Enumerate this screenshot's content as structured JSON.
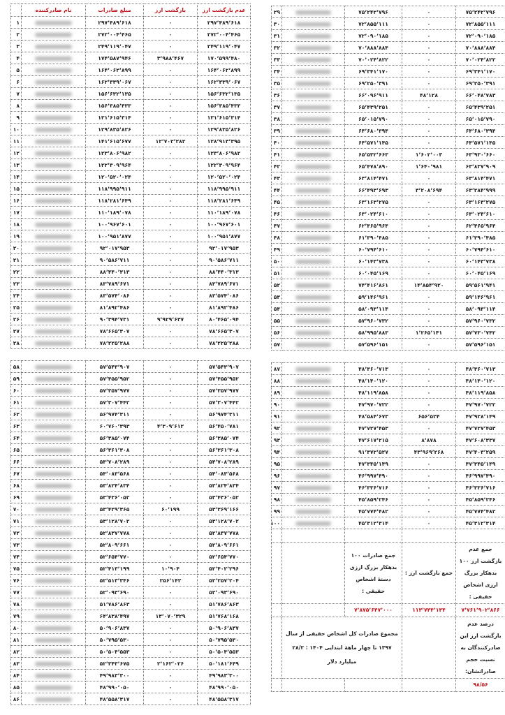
{
  "headers": {
    "name": "نام صادرکننده",
    "amount": "مبلغ صادرات",
    "returned": "بازگشت ارز",
    "not_returned": "عدم بازگشت ارز"
  },
  "colors": {
    "header_text": "#c0141b",
    "total_values": "#c0141b",
    "border": "#777777"
  },
  "names_blurred": true,
  "tables": {
    "top_left": [
      [
        "۱",
        "۲۹۷٬۴۸۹٬۶۱۸",
        "۰",
        "۲۹۷٬۴۸۹٬۶۱۸"
      ],
      [
        "۲",
        "۲۷۲٬۰۰۴٬۴۶۵",
        "۰",
        "۲۷۲٬۰۰۴٬۴۶۵"
      ],
      [
        "۳",
        "۲۴۹٬۱۱۹٬۰۴۷",
        "۰",
        "۲۴۹٬۱۱۹٬۰۴۷"
      ],
      [
        "۴",
        "۱۷۴٬۵۸۷٬۹۴۶",
        "۳٬۹۸۸٬۴۶۷",
        "۱۷۰٬۵۹۹٬۴۸۰"
      ],
      [
        "۵",
        "۱۶۴٬۰۶۲٬۸۹۹",
        "۰",
        "۱۶۴٬۰۶۲٬۸۹۹"
      ],
      [
        "۶",
        "۱۶۲٬۳۳۹٬۰۶۷",
        "۰",
        "۱۶۲٬۳۳۹٬۰۶۷"
      ],
      [
        "۷",
        "۱۵۶٬۶۳۲٬۱۳۵",
        "۰",
        "۱۵۶٬۶۳۲٬۱۳۵"
      ],
      [
        "۸",
        "۱۵۶٬۳۸۵٬۴۳۳",
        "۰",
        "۱۵۶٬۳۸۵٬۴۳۳"
      ],
      [
        "۹",
        "۱۳۱٬۶۱۵٬۳۱۴",
        "۰",
        "۱۳۱٬۶۱۵٬۳۱۴"
      ],
      [
        "۱۰",
        "۱۲۹٬۸۳۵٬۸۲۶",
        "۰",
        "۱۲۹٬۸۳۵٬۸۲۶"
      ],
      [
        "۱۱",
        "۱۴۱٬۶۱۵٬۶۷۷",
        "۱۲٬۷۰۲٬۲۸۲",
        "۱۲۸٬۹۱۳٬۳۹۵"
      ],
      [
        "۱۲",
        "۱۲۳٬۸۰۶٬۹۸۲",
        "۰",
        "۱۲۳٬۸۰۶٬۹۸۲"
      ],
      [
        "۱۳",
        "۱۲۲٬۳۰۹٬۹۶۴",
        "۰",
        "۱۲۲٬۳۰۹٬۹۶۴"
      ],
      [
        "۱۴",
        "۱۲۰٬۵۲۰٬۰۲۴",
        "۰",
        "۱۲۰٬۵۲۰٬۰۲۴"
      ],
      [
        "۱۵",
        "۱۱۸٬۹۹۵٬۹۱۱",
        "۰",
        "۱۱۸٬۹۹۵٬۹۱۱"
      ],
      [
        "۱۶",
        "۱۱۸٬۲۸۱٬۶۴۹",
        "۰",
        "۱۱۸٬۲۸۱٬۶۴۹"
      ],
      [
        "۱۷",
        "۱۱۰٬۱۸۹٬۰۷۸",
        "۰",
        "۱۱۰٬۱۸۹٬۰۷۸"
      ],
      [
        "۱۸",
        "۱۰۰٬۹۶۷٬۶۰۱",
        "۰",
        "۱۰۰٬۹۶۷٬۶۰۱"
      ],
      [
        "۱۹",
        "۱۰۰٬۹۵۱٬۸۷۷",
        "۰",
        "۱۰۰٬۹۵۱٬۸۷۷"
      ],
      [
        "۲۰",
        "۹۲٬۰۱۷٬۹۵۳",
        "۰",
        "۹۲٬۰۱۷٬۹۵۳"
      ],
      [
        "۲۱",
        "۹۰٬۵۸۶٬۷۱۱",
        "۰",
        "۹۰٬۵۸۶٬۷۱۱"
      ],
      [
        "۲۲",
        "۸۸٬۴۴۰٬۳۱۳",
        "۰",
        "۸۸٬۴۴۰٬۳۱۳"
      ],
      [
        "۲۳",
        "۸۳٬۷۸۹٬۶۷۱",
        "۰",
        "۸۳٬۷۸۹٬۶۷۱"
      ],
      [
        "۲۴",
        "۸۳٬۵۷۴٬۰۸۶",
        "۰",
        "۸۳٬۵۷۴٬۰۸۶"
      ],
      [
        "۲۵",
        "۸۱٬۸۹۲٬۴۸۶",
        "۰",
        "۸۱٬۸۹۲٬۴۸۶"
      ],
      [
        "۲۶",
        "۹۰٬۳۹۴٬۷۳۱",
        "۹٬۹۲۹٬۶۳۷",
        "۸۰٬۴۶۵٬۰۹۴"
      ],
      [
        "۲۷",
        "۷۸٬۶۶۵٬۳۰۷",
        "۰",
        "۷۸٬۶۶۵٬۳۰۷"
      ],
      [
        "۲۸",
        "۷۸٬۲۲۵٬۲۸۸",
        "۰",
        "۷۸٬۲۲۵٬۲۸۸"
      ]
    ],
    "top_right": [
      [
        "۲۹",
        "۷۵٬۲۴۲٬۷۹۶",
        "۰",
        "۷۵٬۲۴۲٬۷۹۶"
      ],
      [
        "۳۰",
        "۷۲٬۸۵۵٬۱۱۱",
        "۰",
        "۷۲٬۸۵۵٬۱۱۱"
      ],
      [
        "۳۱",
        "۷۲٬۰۹۰٬۱۸۵",
        "۰",
        "۷۲٬۰۹۰٬۱۸۵"
      ],
      [
        "۳۲",
        "۷۰٬۸۸۸٬۸۸۴",
        "۰",
        "۷۰٬۸۸۸٬۸۸۴"
      ],
      [
        "۳۳",
        "۷۰٬۰۲۴٬۸۲۲",
        "۰",
        "۷۰٬۰۲۴٬۸۲۲"
      ],
      [
        "۳۴",
        "۶۹٬۳۴۱٬۱۷۰",
        "۰",
        "۶۹٬۳۴۱٬۱۷۰"
      ],
      [
        "۳۵",
        "۶۹٬۲۵۰٬۳۹۱",
        "۰",
        "۶۹٬۲۵۰٬۳۹۱"
      ],
      [
        "۳۶",
        "۶۶٬۰۹۶٬۹۱۱",
        "۴۸٬۱۲۸",
        "۶۶٬۰۴۸٬۷۸۳"
      ],
      [
        "۳۷",
        "۶۵٬۴۳۹٬۲۵۱",
        "۰",
        "۶۵٬۴۳۹٬۲۵۱"
      ],
      [
        "۳۸",
        "۶۵٬۰۱۵٬۷۹۰",
        "۰",
        "۶۵٬۰۱۵٬۷۹۰"
      ],
      [
        "۳۹",
        "۶۴٬۶۸۰٬۳۹۴",
        "۰",
        "۶۴٬۶۸۰٬۳۹۴"
      ],
      [
        "۴۰",
        "۶۴٬۵۷۱٬۱۴۵",
        "۰",
        "۶۴٬۵۷۱٬۱۴۵"
      ],
      [
        "۴۱",
        "۶۵٬۵۳۲٬۶۶۳",
        "۱٬۶۰۲٬۰۰۳",
        "۶۳٬۹۳۰٬۶۶۰"
      ],
      [
        "۴۲",
        "۶۵٬۴۷۸٬۸۹۰",
        "۱٬۶۴۰٬۹۸۱",
        "۶۳٬۸۳۷٬۹۰۹"
      ],
      [
        "۴۳",
        "۶۳٬۸۱۴٬۴۷۱",
        "۰",
        "۶۳٬۸۱۴٬۴۷۱"
      ],
      [
        "۴۴",
        "۶۶٬۴۹۳٬۶۹۳",
        "۳٬۲۰۸٬۶۹۴",
        "۶۳٬۲۸۴٬۹۹۹"
      ],
      [
        "۴۵",
        "۶۳٬۱۶۳٬۲۷۵",
        "۰",
        "۶۳٬۱۶۳٬۲۷۵"
      ],
      [
        "۴۶",
        "۶۳٬۰۲۴٬۶۱۰",
        "۰",
        "۶۳٬۰۲۴٬۶۱۰"
      ],
      [
        "۴۷",
        "۶۲٬۴۶۵٬۹۶۴",
        "۰",
        "۶۲٬۴۶۵٬۹۶۴"
      ],
      [
        "۴۸",
        "۶۱٬۳۹۰٬۴۸۵",
        "۰",
        "۶۱٬۳۹۰٬۴۸۵"
      ],
      [
        "۴۹",
        "۶۰٬۷۹۴٬۶۱۰",
        "۰",
        "۶۰٬۷۹۴٬۶۱۰"
      ],
      [
        "۵۰",
        "۶۰٬۱۴۳٬۷۳۸",
        "۰",
        "۶۰٬۱۴۳٬۷۳۸"
      ],
      [
        "۵۱",
        "۶۰٬۰۴۵٬۱۶۹",
        "۰",
        "۶۰٬۰۴۵٬۱۶۹"
      ],
      [
        "۵۲",
        "۷۴٬۴۱۶٬۸۶۱",
        "۱۴٬۸۵۴٬۹۲۰",
        "۵۹٬۵۶۱٬۹۴۱"
      ],
      [
        "۵۳",
        "۵۹٬۱۴۶٬۹۶۱",
        "۰",
        "۵۹٬۱۴۶٬۹۶۱"
      ],
      [
        "۵۴",
        "۵۸٬۰۹۳٬۱۱۴",
        "۰",
        "۵۸٬۰۹۳٬۱۱۴"
      ],
      [
        "۵۵",
        "۵۷٬۹۶۰٬۷۳۲",
        "۰",
        "۵۷٬۹۶۰٬۷۳۲"
      ],
      [
        "۵۶",
        "۵۸٬۹۹۵٬۸۸۳",
        "۱٬۲۶۵٬۱۴۱",
        "۵۷٬۷۳۰٬۷۴۲"
      ],
      [
        "۵۷",
        "۵۷٬۵۹۶٬۱۵۱",
        "۰",
        "۵۷٬۵۹۶٬۱۵۱"
      ]
    ],
    "bottom_left": [
      [
        "۵۸",
        "۵۷٬۵۴۳٬۹۰۷",
        "۰",
        "۵۷٬۵۴۳٬۹۰۷"
      ],
      [
        "۵۹",
        "۵۷٬۴۵۵٬۹۵۲",
        "۰",
        "۵۷٬۴۵۵٬۹۵۲"
      ],
      [
        "۶۰",
        "۵۷٬۳۵۷٬۹۷۷",
        "۰",
        "۵۷٬۳۵۷٬۹۷۷"
      ],
      [
        "۶۱",
        "۵۷٬۳۰۷٬۴۴۲",
        "۰",
        "۵۷٬۳۰۷٬۴۴۲"
      ],
      [
        "۶۲",
        "۵۶٬۹۷۴٬۳۱۱",
        "۰",
        "۵۶٬۹۷۴٬۳۱۱"
      ],
      [
        "۶۳",
        "۶۰٬۷۶۰٬۳۹۳",
        "۴٬۳۰۹٬۶۱۲",
        "۵۶٬۴۵۰٬۷۸۱"
      ],
      [
        "۶۴",
        "۵۶٬۳۸۵٬۰۷۴",
        "۰",
        "۵۶٬۳۸۵٬۰۷۴"
      ],
      [
        "۶۵",
        "۵۶٬۳۶۱٬۳۰۸",
        "۰",
        "۵۶٬۳۶۱٬۳۰۸"
      ],
      [
        "۶۶",
        "۵۴٬۷۰۸٬۲۸۹",
        "۰",
        "۵۴٬۷۰۸٬۲۸۹"
      ],
      [
        "۶۷",
        "۵۴٬۰۸۳٬۵۶۸",
        "۰",
        "۵۴٬۰۸۳٬۵۶۸"
      ],
      [
        "۶۸",
        "۵۳٬۸۲۴٬۸۳۴",
        "۰",
        "۵۳٬۸۲۴٬۸۳۴"
      ],
      [
        "۶۹",
        "۵۳٬۴۳۶٬۰۵۲",
        "۰",
        "۵۳٬۴۳۶٬۰۵۲"
      ],
      [
        "۷۰",
        "۵۳٬۴۲۹٬۳۶۵",
        "۶۰٬۱۹۹",
        "۵۳٬۳۶۹٬۱۶۶"
      ],
      [
        "۷۱",
        "۵۳٬۱۲۸٬۷۰۲",
        "۰",
        "۵۳٬۱۲۸٬۷۰۲"
      ],
      [
        "۷۲",
        "۵۲٬۸۳۷٬۷۷۸",
        "۰",
        "۵۲٬۸۳۷٬۷۷۸"
      ],
      [
        "۷۳",
        "۵۲٬۸۰۹٬۶۶۱",
        "۰",
        "۵۲٬۸۰۹٬۶۶۱"
      ],
      [
        "۷۴",
        "۵۲٬۶۵۴٬۷۷۰",
        "۰",
        "۵۲٬۶۵۴٬۷۷۰"
      ],
      [
        "۷۵",
        "۵۲٬۴۱۳٬۱۹۹",
        "۱۰٬۹۰۴",
        "۵۲٬۴۰۲٬۲۹۶"
      ],
      [
        "۷۶",
        "۵۲٬۵۱۳٬۳۴۶",
        "۲۵۶٬۱۴۲",
        "۵۲٬۲۵۷٬۲۰۴"
      ],
      [
        "۷۷",
        "۵۲٬۰۹۳٬۶۹۰",
        "۰",
        "۵۲٬۰۹۳٬۶۹۰"
      ],
      [
        "۷۸",
        "۵۱٬۷۸۶٬۸۶۳",
        "۰",
        "۵۱٬۷۸۶٬۸۶۳"
      ],
      [
        "۷۹",
        "۶۴٬۸۳۸٬۴۹۷",
        "۱۳٬۰۷۰٬۳۲۹",
        "۵۱٬۷۶۸٬۱۶۸"
      ],
      [
        "۸۰",
        "۵۰٬۹۰۶٬۸۳۷",
        "۰",
        "۵۰٬۹۰۶٬۸۳۷"
      ],
      [
        "۸۱",
        "۵۰٬۷۹۵٬۵۳۰",
        "۰",
        "۵۰٬۷۹۵٬۵۳۰"
      ],
      [
        "۸۲",
        "۵۰٬۵۰۴٬۵۵۳",
        "۰",
        "۵۰٬۵۰۴٬۵۵۳"
      ],
      [
        "۸۳",
        "۵۲٬۳۴۳٬۶۷۵",
        "۲٬۱۶۲٬۰۲۶",
        "۵۰٬۱۸۱٬۶۴۹"
      ],
      [
        "۸۴",
        "۴۹٬۹۸۳٬۳۰۰",
        "۰",
        "۴۹٬۹۸۳٬۳۰۰"
      ],
      [
        "۸۵",
        "۴۸٬۹۹۰٬۰۵۰",
        "۰",
        "۴۸٬۹۹۰٬۰۵۰"
      ],
      [
        "۸۶",
        "۴۸٬۵۵۸٬۳۱۷",
        "۰",
        "۴۸٬۵۵۸٬۳۱۷"
      ]
    ],
    "bottom_right": [
      [
        "۸۷",
        "۴۸٬۳۶۰٬۷۱۳",
        "۰",
        "۴۸٬۳۶۰٬۷۱۳"
      ],
      [
        "۸۸",
        "۴۸٬۱۴۰٬۱۲۰",
        "۰",
        "۴۸٬۱۴۰٬۱۲۰"
      ],
      [
        "۸۹",
        "۴۸٬۱۱۹٬۸۵۸",
        "۰",
        "۴۸٬۱۱۹٬۸۵۸"
      ],
      [
        "۹۰",
        "۴۷٬۹۷۰٬۷۲۲",
        "۰",
        "۴۷٬۹۷۰٬۷۲۲"
      ],
      [
        "۹۱",
        "۴۸٬۵۸۴٬۶۷۳",
        "۶۵۶٬۵۲۴",
        "۴۷٬۹۲۸٬۱۴۹"
      ],
      [
        "۹۲",
        "۴۷٬۷۲۷٬۴۵۳",
        "۰",
        "۴۷٬۷۲۷٬۴۵۳"
      ],
      [
        "۹۳",
        "۴۷٬۶۱۷٬۲۱۵",
        "۸٬۸۷۸",
        "۴۷٬۶۰۸٬۳۳۷"
      ],
      [
        "۹۴",
        "۹۱٬۳۷۲٬۵۲۷",
        "۴۳٬۹۶۹٬۲۶۸",
        "۴۷٬۴۰۳٬۲۵۹"
      ],
      [
        "۹۵",
        "۴۷٬۳۴۵٬۱۴۹",
        "۰",
        "۴۷٬۳۴۵٬۱۴۹"
      ],
      [
        "۹۶",
        "۴۶٬۹۹۷٬۴۹۰",
        "۰",
        "۴۶٬۹۹۷٬۴۹۰"
      ],
      [
        "۹۷",
        "۴۶٬۳۳۶٬۷۱۶",
        "۰",
        "۴۶٬۳۳۶٬۷۱۶"
      ],
      [
        "۹۸",
        "۴۵٬۸۵۹٬۲۴۶",
        "۰",
        "۴۵٬۸۵۹٬۲۴۶"
      ],
      [
        "۹۹",
        "۴۵٬۷۷۴٬۴۸۲",
        "۰",
        "۴۵٬۷۷۴٬۴۸۲"
      ],
      [
        "۱۰۰",
        "۴۵٬۳۱۲٬۳۱۴",
        "۰",
        "۴۵٬۳۱۲٬۳۱۴"
      ]
    ]
  },
  "summary": {
    "total_not_returned_label": "جمع عدم بازگشت ارز ۱۰۰ بدهکار بزرگ ارزی اشخاص حقیقی :",
    "total_not_returned_value": "۷٬۷۶۱٬۹۰۲٬۸۶۶",
    "total_returned_label": "جمع بازگشت ارز :",
    "total_returned_value": "۱۱۳٬۷۴۴٬۱۳۴",
    "total_exports_label": "جمع صادرات ۱۰۰ بدهکار بزرگ ارزی دستهٔ اشخاص حقیقی :",
    "total_exports_value": "۷٬۸۷۵٬۶۴۷٬۰۰۰",
    "percent_label": "درصد عدم بازگشت ارز این صادرکنندگان به نسبت حجم صادراتشان:",
    "percent_value": "۹۸/۵۶",
    "overall_note": "مجموع صادرات کل اشخاص حقیقی از سال ۱۳۹۷ تا چهار ماهۀ ابتدایی ۱۴۰۴ : ۲۸/۲ میلیارد دلار"
  }
}
